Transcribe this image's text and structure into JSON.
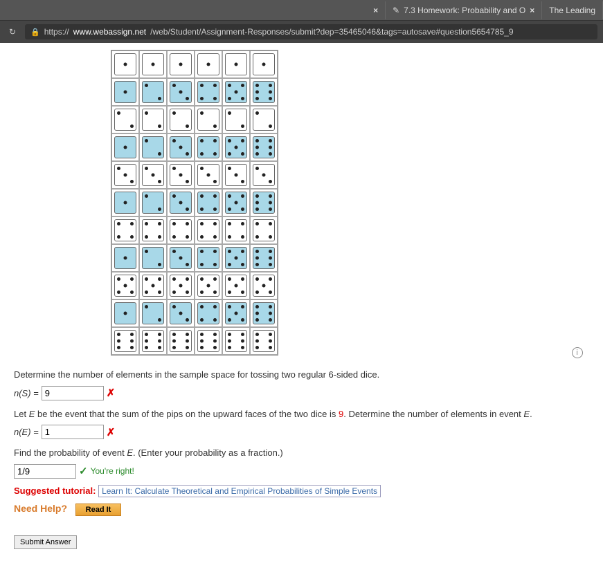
{
  "browser": {
    "tabs": [
      {
        "title": "7.3 Homework: Probability and O",
        "close": "×"
      },
      {
        "title": "The Leading"
      }
    ],
    "prev_close": "×",
    "url_prefix": "https://",
    "url_host": "www.webassign.net",
    "url_path": "/web/Student/Assignment-Responses/submit?dep=35465046&tags=autosave#question5654785_9"
  },
  "dice": {
    "highlight_color": "#a8d8e8",
    "cells": [
      [
        {
          "v": 1,
          "h": 0
        },
        {
          "v": 1,
          "h": 0
        },
        {
          "v": 1,
          "h": 0
        },
        {
          "v": 1,
          "h": 0
        },
        {
          "v": 1,
          "h": 0
        },
        {
          "v": 1,
          "h": 0
        }
      ],
      [
        {
          "v": 1,
          "h": 1
        },
        {
          "v": 2,
          "h": 1
        },
        {
          "v": 3,
          "h": 1
        },
        {
          "v": 4,
          "h": 1
        },
        {
          "v": 5,
          "h": 1
        },
        {
          "v": 6,
          "h": 1
        }
      ],
      [
        {
          "v": 2,
          "h": 0
        },
        {
          "v": 2,
          "h": 0
        },
        {
          "v": 2,
          "h": 0
        },
        {
          "v": 2,
          "h": 0
        },
        {
          "v": 2,
          "h": 0
        },
        {
          "v": 2,
          "h": 0
        }
      ],
      [
        {
          "v": 1,
          "h": 1
        },
        {
          "v": 2,
          "h": 1
        },
        {
          "v": 3,
          "h": 1
        },
        {
          "v": 4,
          "h": 1
        },
        {
          "v": 5,
          "h": 1
        },
        {
          "v": 6,
          "h": 1
        }
      ],
      [
        {
          "v": 3,
          "h": 0
        },
        {
          "v": 3,
          "h": 0
        },
        {
          "v": 3,
          "h": 0
        },
        {
          "v": 3,
          "h": 0
        },
        {
          "v": 3,
          "h": 0
        },
        {
          "v": 3,
          "h": 0
        }
      ],
      [
        {
          "v": 1,
          "h": 1
        },
        {
          "v": 2,
          "h": 1
        },
        {
          "v": 3,
          "h": 1
        },
        {
          "v": 4,
          "h": 1
        },
        {
          "v": 5,
          "h": 1
        },
        {
          "v": 6,
          "h": 1
        }
      ],
      [
        {
          "v": 4,
          "h": 0
        },
        {
          "v": 4,
          "h": 0
        },
        {
          "v": 4,
          "h": 0
        },
        {
          "v": 4,
          "h": 0
        },
        {
          "v": 4,
          "h": 0
        },
        {
          "v": 4,
          "h": 0
        }
      ],
      [
        {
          "v": 1,
          "h": 1
        },
        {
          "v": 2,
          "h": 1
        },
        {
          "v": 3,
          "h": 1
        },
        {
          "v": 4,
          "h": 1
        },
        {
          "v": 5,
          "h": 1
        },
        {
          "v": 6,
          "h": 1
        }
      ],
      [
        {
          "v": 5,
          "h": 0
        },
        {
          "v": 5,
          "h": 0
        },
        {
          "v": 5,
          "h": 0
        },
        {
          "v": 5,
          "h": 0
        },
        {
          "v": 5,
          "h": 0
        },
        {
          "v": 5,
          "h": 0
        }
      ],
      [
        {
          "v": 1,
          "h": 1
        },
        {
          "v": 2,
          "h": 1
        },
        {
          "v": 3,
          "h": 1
        },
        {
          "v": 4,
          "h": 1
        },
        {
          "v": 5,
          "h": 1
        },
        {
          "v": 6,
          "h": 1
        }
      ],
      [
        {
          "v": 6,
          "h": 0
        },
        {
          "v": 6,
          "h": 0
        },
        {
          "v": 6,
          "h": 0
        },
        {
          "v": 6,
          "h": 0
        },
        {
          "v": 6,
          "h": 0
        },
        {
          "v": 6,
          "h": 0
        }
      ]
    ]
  },
  "q1": {
    "text": "Determine the number of elements in the sample space for tossing two regular 6-sided dice.",
    "label_pre": "n(S) = ",
    "value": "9",
    "mark": "✗"
  },
  "q2": {
    "text_pre": "Let ",
    "text_E": "E",
    "text_mid1": " be the event that the sum of the pips on the upward faces of the two dice is ",
    "text_num": "9",
    "text_mid2": ". Determine the number of elements in event ",
    "text_E2": "E",
    "text_end": ".",
    "label_pre": "n(E) = ",
    "value": "1",
    "mark": "✗"
  },
  "q3": {
    "text_pre": "Find the probability of event ",
    "text_E": "E",
    "text_end": ". (Enter your probability as a fraction.)",
    "value": "1/9",
    "mark": "✓",
    "right_text": "You're right!"
  },
  "suggested": {
    "label": "Suggested tutorial:",
    "link": "Learn It: Calculate Theoretical and Empirical Probabilities of Simple Events"
  },
  "help": {
    "label": "Need Help?",
    "read": "Read It"
  },
  "submit": "Submit Answer",
  "info_icon": "i"
}
